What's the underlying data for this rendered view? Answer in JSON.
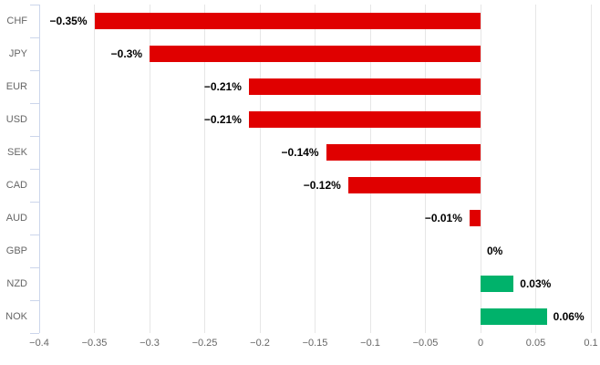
{
  "chart_data": {
    "type": "bar",
    "orientation": "horizontal",
    "title": "",
    "xlabel": "",
    "ylabel": "",
    "legend": false,
    "grid": "vertical",
    "categories": [
      "CHF",
      "JPY",
      "EUR",
      "USD",
      "SEK",
      "CAD",
      "AUD",
      "GBP",
      "NZD",
      "NOK"
    ],
    "values": [
      -0.35,
      -0.3,
      -0.21,
      -0.21,
      -0.14,
      -0.12,
      -0.01,
      0,
      0.03,
      0.06
    ],
    "value_labels": [
      "−0.35%",
      "−0.3%",
      "−0.21%",
      "−0.21%",
      "−0.14%",
      "−0.12%",
      "−0.01%",
      "0%",
      "0.03%",
      "0.06%"
    ],
    "x_ticks": [
      -0.4,
      -0.35,
      -0.3,
      -0.25,
      -0.2,
      -0.15,
      -0.1,
      -0.05,
      0,
      0.05,
      0.1
    ],
    "x_tick_labels": [
      "−0.4",
      "−0.35",
      "−0.3",
      "−0.25",
      "−0.2",
      "−0.15",
      "−0.1",
      "−0.05",
      "0",
      "0.05",
      "0.1"
    ],
    "xlim": [
      -0.4,
      0.1
    ],
    "colors": {
      "negative": "#e00000",
      "positive": "#00b26b"
    }
  },
  "style": {
    "axis_line_color": "#ccd6eb",
    "gridline_color": "#e6e6e6",
    "tick_label_color": "#666666",
    "value_label_color": "#000000",
    "background": "#ffffff"
  }
}
